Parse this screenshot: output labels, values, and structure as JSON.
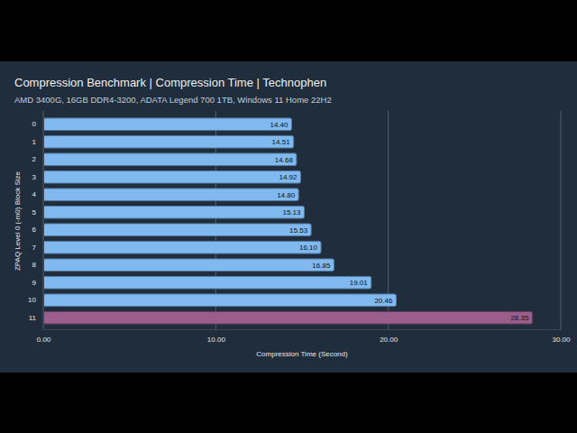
{
  "chart_data": {
    "type": "bar",
    "orientation": "horizontal",
    "title": "Compression Benchmark | Compression Time | Technophen",
    "subtitle": "AMD 3400G, 16GB DDR4-3200, ADATA Legend 700 1TB, Windows 11 Home 22H2",
    "x_label": "Compression Time (Second)",
    "y_label": "ZPAQ Level 0 (-m0) Block Size",
    "categories": [
      "0",
      "1",
      "2",
      "3",
      "4",
      "5",
      "6",
      "7",
      "8",
      "9",
      "10",
      "11"
    ],
    "values": [
      14.4,
      14.51,
      14.68,
      14.92,
      14.8,
      15.13,
      15.53,
      16.1,
      16.85,
      19.01,
      20.46,
      28.35
    ],
    "value_labels": [
      "14.40",
      "14.51",
      "14.68",
      "14.92",
      "14.80",
      "15.13",
      "15.53",
      "16.10",
      "16.85",
      "19.01",
      "20.46",
      "28.35"
    ],
    "colors": [
      "#7fb9ef",
      "#7fb9ef",
      "#7fb9ef",
      "#7fb9ef",
      "#7fb9ef",
      "#7fb9ef",
      "#7fb9ef",
      "#7fb9ef",
      "#7fb9ef",
      "#7fb9ef",
      "#7fb9ef",
      "#9a5d8c"
    ],
    "xlim": [
      0,
      30
    ],
    "xticks": [
      {
        "value": 0,
        "label": "0.00"
      },
      {
        "value": 10,
        "label": "10.00"
      },
      {
        "value": 20,
        "label": "20.00"
      },
      {
        "value": 30,
        "label": "30.00"
      }
    ],
    "grid": true,
    "data_labels": true
  }
}
